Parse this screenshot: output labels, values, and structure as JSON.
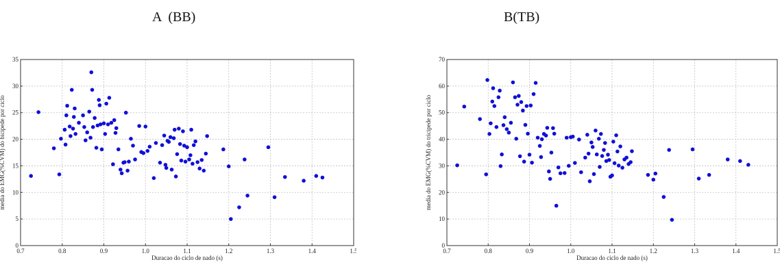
{
  "panels": [
    {
      "title": "A  (BB)"
    },
    {
      "title": "B(TB)"
    }
  ],
  "style": {
    "point_color": "#1010d8",
    "grid_color": "#bfbfbf"
  },
  "chart_data": [
    {
      "type": "scatter",
      "title": "A  (BB)",
      "xlabel": "Duracao do ciclo de nado (s)",
      "ylabel": "media do EMG(%CVM) do bicipede por ciclo",
      "xlim": [
        0.7,
        1.5
      ],
      "ylim": [
        0,
        35
      ],
      "xticks": [
        "0.7",
        "0.8",
        "0.9",
        "1.0",
        "1.1",
        "1.2",
        "1.3",
        "1.4",
        "1.5"
      ],
      "yticks": [
        "0",
        "5",
        "10",
        "15",
        "20",
        "25",
        "30",
        "35"
      ],
      "grid": true,
      "x": [
        0.725,
        0.743,
        0.78,
        0.793,
        0.797,
        0.806,
        0.808,
        0.81,
        0.812,
        0.818,
        0.82,
        0.823,
        0.826,
        0.828,
        0.83,
        0.832,
        0.84,
        0.85,
        0.853,
        0.856,
        0.86,
        0.865,
        0.868,
        0.87,
        0.872,
        0.874,
        0.878,
        0.882,
        0.885,
        0.888,
        0.89,
        0.892,
        0.895,
        0.9,
        0.903,
        0.906,
        0.91,
        0.913,
        0.918,
        0.922,
        0.925,
        0.928,
        0.93,
        0.935,
        0.94,
        0.943,
        0.947,
        0.95,
        0.953,
        0.957,
        0.96,
        0.965,
        0.97,
        0.975,
        0.985,
        0.99,
        0.995,
        1.0,
        1.005,
        1.01,
        1.02,
        1.025,
        1.035,
        1.04,
        1.045,
        1.048,
        1.05,
        1.053,
        1.056,
        1.06,
        1.063,
        1.068,
        1.07,
        1.073,
        1.076,
        1.08,
        1.083,
        1.086,
        1.09,
        1.093,
        1.096,
        1.1,
        1.105,
        1.108,
        1.11,
        1.113,
        1.116,
        1.12,
        1.125,
        1.13,
        1.135,
        1.14,
        1.145,
        1.148,
        1.187,
        1.2,
        1.205,
        1.225,
        1.238,
        1.245,
        1.295,
        1.31,
        1.335,
        1.38,
        1.41,
        1.425
      ],
      "y": [
        13.1,
        25.1,
        18.3,
        13.4,
        20.1,
        21.8,
        19.0,
        24.5,
        26.3,
        22.4,
        20.6,
        29.3,
        22.0,
        24.2,
        25.8,
        21.0,
        23.1,
        24.5,
        22.3,
        19.8,
        21.3,
        25.2,
        20.3,
        32.6,
        29.3,
        22.3,
        24.0,
        18.4,
        22.6,
        27.4,
        26.4,
        22.8,
        18.1,
        23.0,
        21.0,
        26.7,
        22.8,
        27.8,
        23.1,
        15.3,
        23.6,
        21.2,
        22.1,
        18.1,
        14.3,
        13.6,
        15.6,
        15.7,
        25.0,
        14.1,
        15.8,
        20.1,
        18.8,
        16.2,
        22.5,
        17.6,
        17.4,
        22.4,
        17.8,
        18.6,
        12.7,
        19.3,
        15.6,
        18.9,
        20.7,
        15.2,
        14.6,
        19.7,
        19.5,
        20.4,
        14.3,
        20.2,
        21.8,
        13.0,
        17.2,
        22.0,
        19.1,
        16.0,
        21.5,
        18.8,
        15.8,
        18.5,
        16.2,
        17.0,
        21.8,
        15.4,
        18.9,
        19.6,
        15.7,
        14.5,
        16.1,
        14.1,
        17.3,
        20.6,
        18.1,
        14.9,
        5.0,
        7.2,
        16.2,
        9.4,
        18.5,
        9.1,
        12.9,
        12.2,
        13.1,
        12.8
      ]
    },
    {
      "type": "scatter",
      "title": "B(TB)",
      "xlabel": "Duracao do ciclo de nado (s)",
      "ylabel": "media do EMG(%CVM) do tricipede por ciclo",
      "xlim": [
        0.7,
        1.5
      ],
      "ylim": [
        0,
        70
      ],
      "xticks": [
        "0.7",
        "0.8",
        "0.9",
        "1.0",
        "1.1",
        "1.2",
        "1.3",
        "1.4",
        "1.5"
      ],
      "yticks": [
        "0",
        "10",
        "20",
        "30",
        "40",
        "50",
        "60",
        "70"
      ],
      "grid": true,
      "x": [
        0.725,
        0.742,
        0.78,
        0.795,
        0.798,
        0.803,
        0.806,
        0.81,
        0.812,
        0.815,
        0.82,
        0.825,
        0.828,
        0.83,
        0.833,
        0.837,
        0.84,
        0.845,
        0.85,
        0.855,
        0.86,
        0.865,
        0.868,
        0.871,
        0.874,
        0.877,
        0.88,
        0.884,
        0.887,
        0.89,
        0.893,
        0.896,
        0.9,
        0.903,
        0.906,
        0.91,
        0.915,
        0.92,
        0.925,
        0.928,
        0.93,
        0.935,
        0.94,
        0.943,
        0.947,
        0.95,
        0.953,
        0.957,
        0.96,
        0.965,
        0.97,
        0.975,
        0.985,
        0.99,
        0.995,
        1.0,
        1.005,
        1.01,
        1.02,
        1.025,
        1.035,
        1.04,
        1.043,
        1.046,
        1.05,
        1.053,
        1.056,
        1.06,
        1.063,
        1.068,
        1.07,
        1.073,
        1.076,
        1.08,
        1.083,
        1.086,
        1.09,
        1.093,
        1.096,
        1.1,
        1.103,
        1.106,
        1.11,
        1.113,
        1.116,
        1.12,
        1.125,
        1.13,
        1.135,
        1.14,
        1.145,
        1.148,
        1.187,
        1.2,
        1.205,
        1.225,
        1.238,
        1.245,
        1.295,
        1.31,
        1.335,
        1.38,
        1.41,
        1.43
      ],
      "y": [
        30.2,
        52.3,
        47.6,
        26.8,
        62.3,
        42.0,
        46.0,
        54.2,
        59.2,
        52.5,
        44.6,
        55.8,
        58.3,
        29.9,
        34.3,
        45.3,
        48.3,
        43.8,
        42.5,
        46.2,
        61.4,
        55.8,
        40.2,
        53.0,
        56.3,
        33.6,
        54.0,
        50.8,
        31.6,
        45.4,
        52.5,
        42.1,
        34.2,
        52.7,
        31.2,
        57.0,
        61.2,
        40.6,
        37.5,
        33.3,
        40.0,
        42.0,
        41.4,
        44.3,
        27.9,
        25.1,
        35.0,
        44.2,
        42.1,
        15.0,
        29.4,
        27.2,
        27.3,
        40.6,
        30.0,
        40.8,
        41.0,
        31.1,
        39.9,
        27.6,
        33.1,
        41.7,
        34.6,
        24.2,
        38.8,
        37.1,
        26.9,
        43.3,
        34.3,
        40.2,
        29.6,
        42.0,
        33.7,
        36.0,
        38.6,
        31.8,
        34.2,
        32.2,
        25.9,
        26.4,
        39.1,
        31.0,
        41.5,
        35.4,
        30.1,
        37.3,
        29.3,
        32.4,
        33.1,
        30.7,
        31.4,
        35.5,
        26.6,
        24.8,
        27.1,
        18.3,
        36.0,
        9.7,
        36.2,
        25.2,
        26.6,
        32.4,
        31.8,
        30.4
      ]
    }
  ]
}
